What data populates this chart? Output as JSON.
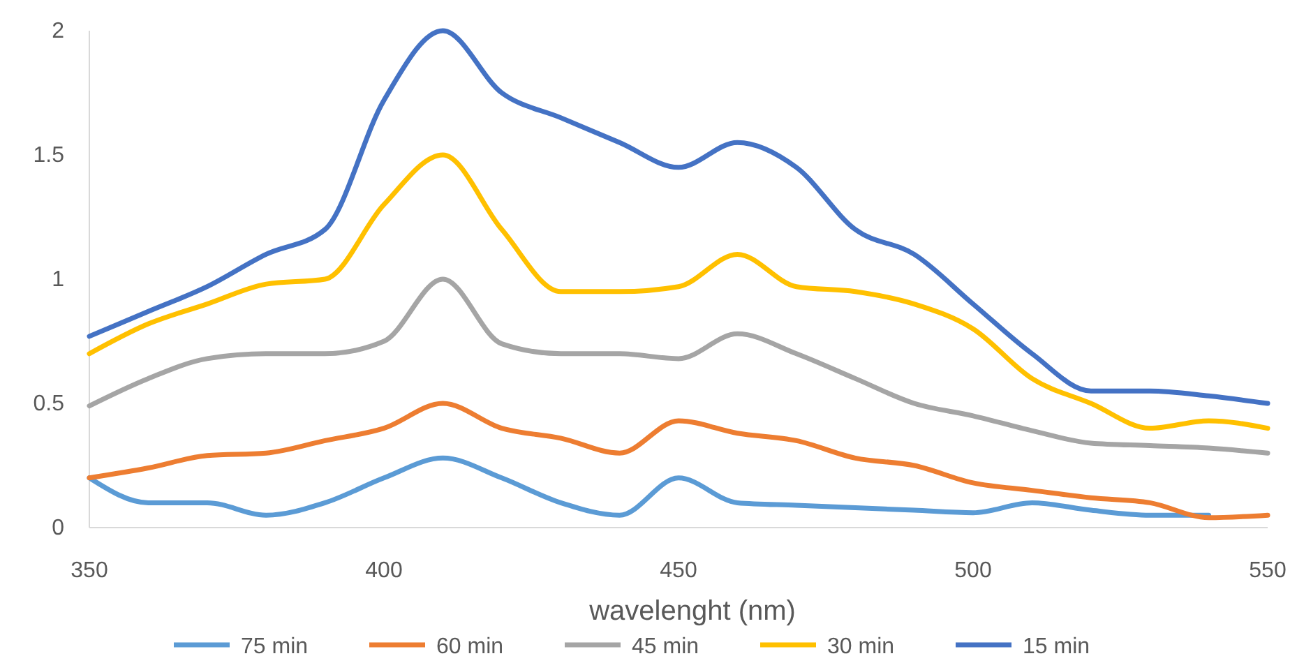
{
  "chart_data": {
    "type": "line",
    "xlabel": "wavelenght (nm)",
    "x": [
      350,
      360,
      370,
      380,
      390,
      400,
      410,
      420,
      430,
      440,
      450,
      460,
      470,
      480,
      490,
      500,
      510,
      520,
      530,
      540,
      550
    ],
    "series": [
      {
        "name": "75 min",
        "color": "#5b9bd5",
        "values": [
          0.2,
          0.1,
          0.1,
          0.05,
          0.1,
          0.2,
          0.28,
          0.2,
          0.1,
          0.05,
          0.2,
          0.1,
          0.09,
          0.08,
          0.07,
          0.06,
          0.1,
          0.07,
          0.05,
          0.05,
          null
        ]
      },
      {
        "name": "60 min",
        "color": "#ed7d31",
        "values": [
          0.2,
          0.24,
          0.29,
          0.3,
          0.35,
          0.4,
          0.5,
          0.4,
          0.36,
          0.3,
          0.43,
          0.38,
          0.35,
          0.28,
          0.25,
          0.18,
          0.15,
          0.12,
          0.1,
          0.04,
          0.05
        ]
      },
      {
        "name": "45 min",
        "color": "#a5a5a5",
        "values": [
          0.49,
          0.6,
          0.68,
          0.7,
          0.7,
          0.75,
          1.0,
          0.74,
          0.7,
          0.7,
          0.68,
          0.78,
          0.7,
          0.6,
          0.5,
          0.45,
          0.39,
          0.34,
          0.33,
          0.32,
          0.3
        ]
      },
      {
        "name": "30 min",
        "color": "#ffc000",
        "values": [
          0.7,
          0.82,
          0.9,
          0.98,
          1.0,
          1.3,
          1.5,
          1.2,
          0.95,
          0.95,
          0.97,
          1.1,
          0.97,
          0.95,
          0.9,
          0.8,
          0.6,
          0.5,
          0.4,
          0.43,
          0.4
        ]
      },
      {
        "name": "15 min",
        "color": "#4472c4",
        "values": [
          0.77,
          0.87,
          0.97,
          1.1,
          1.2,
          1.72,
          2.0,
          1.75,
          1.65,
          1.55,
          1.45,
          1.55,
          1.45,
          1.2,
          1.1,
          0.9,
          0.7,
          0.55,
          0.55,
          0.53,
          0.5
        ]
      }
    ],
    "xlim": [
      350,
      550
    ],
    "xticks": [
      350,
      400,
      450,
      500,
      550
    ],
    "ylim": [
      0,
      2
    ],
    "yticks": [
      0,
      0.5,
      1,
      1.5,
      2
    ],
    "grid": false,
    "legend": "bottom",
    "marker": "none",
    "line_style": "solid"
  }
}
